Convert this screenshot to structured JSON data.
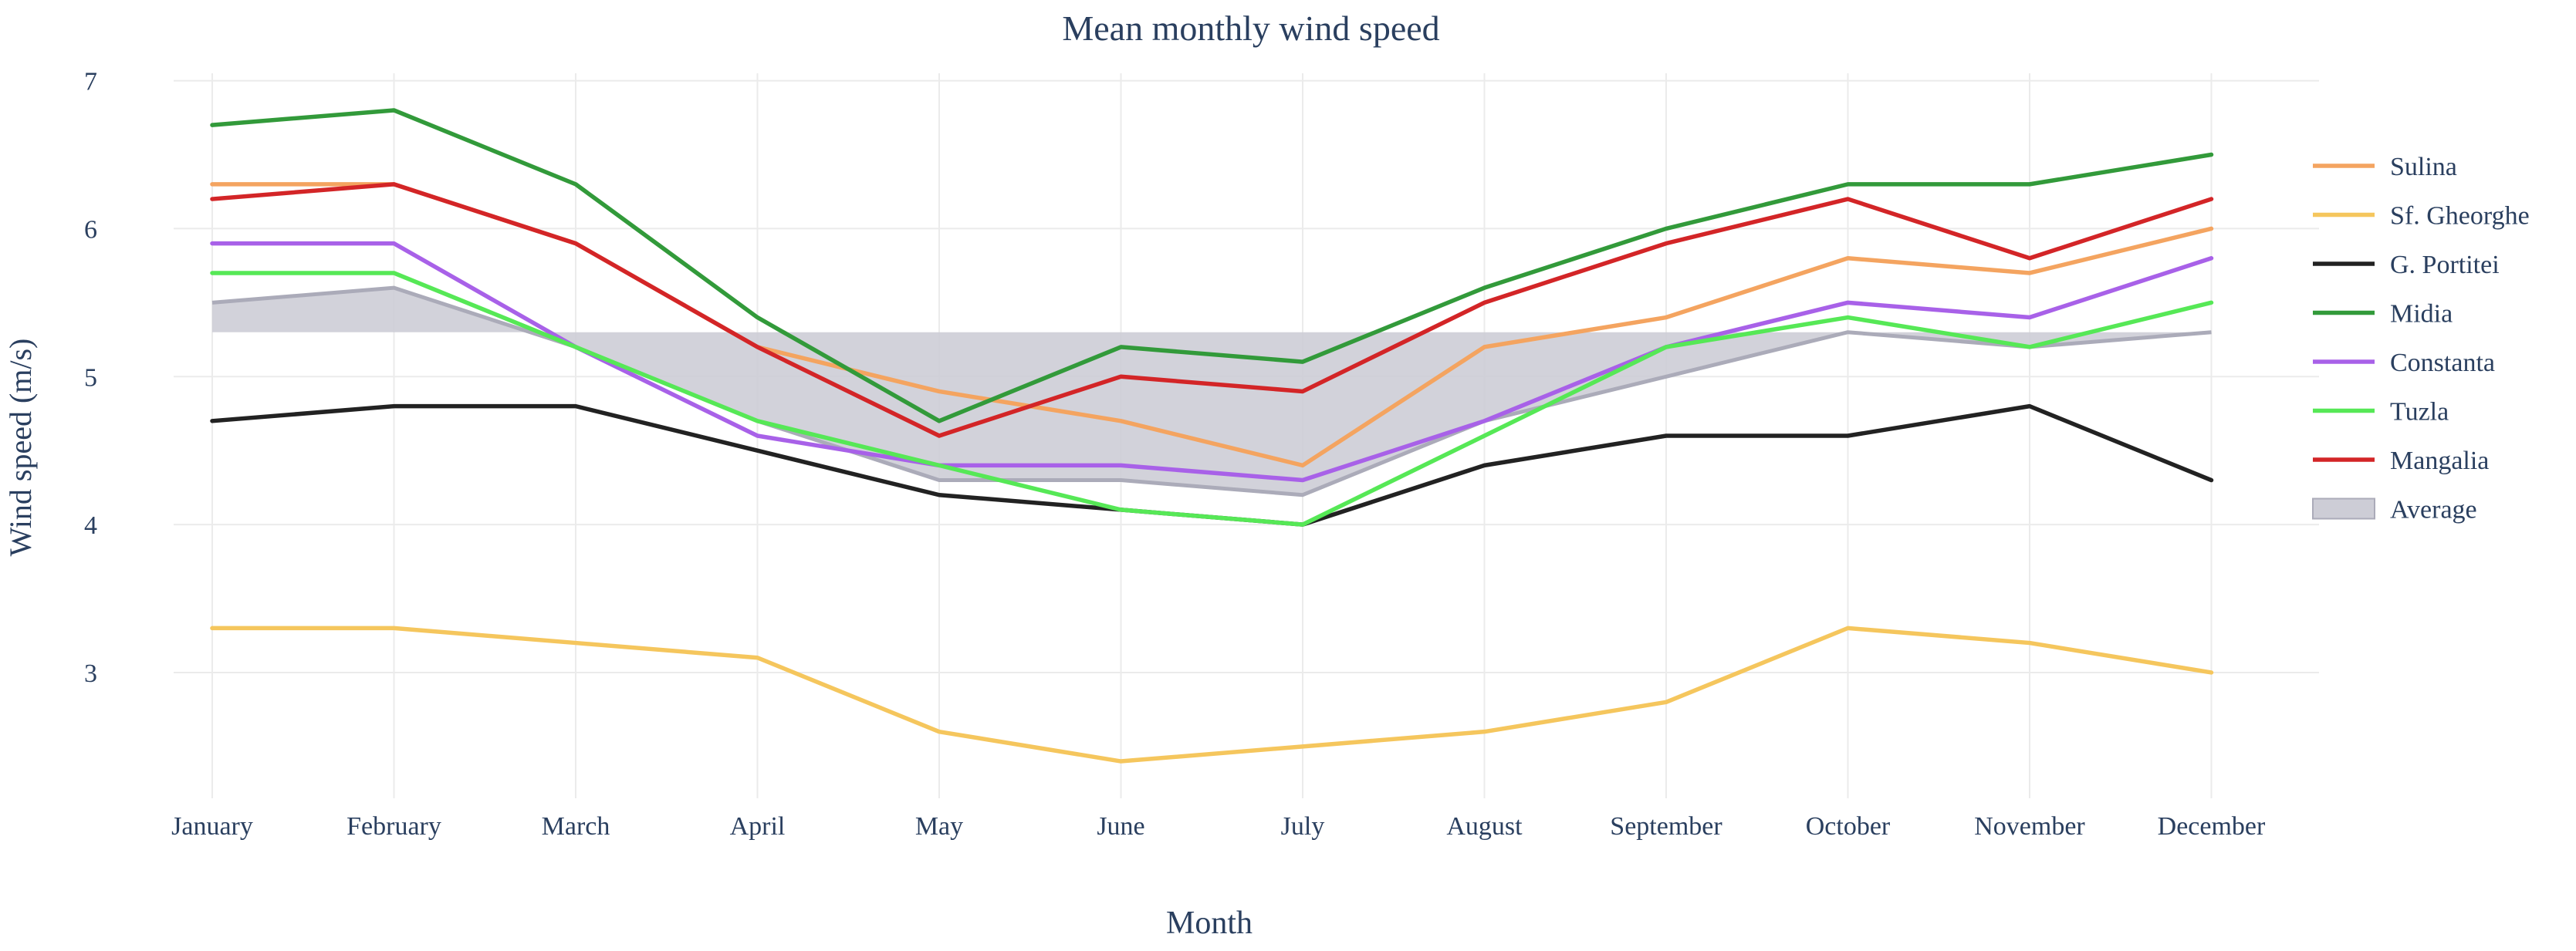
{
  "chart_data": {
    "type": "line",
    "title": "Mean monthly wind speed",
    "xlabel": "Month",
    "ylabel": "Wind speed (m/s)",
    "categories": [
      "January",
      "February",
      "March",
      "April",
      "May",
      "June",
      "July",
      "August",
      "September",
      "October",
      "November",
      "December"
    ],
    "ylim": [
      2.15,
      7.05
    ],
    "yticks": [
      3,
      4,
      5,
      6,
      7
    ],
    "grid": true,
    "legend_position": "right",
    "average_band": {
      "name": "Average",
      "color": "#ababb9",
      "fill": "#cdcdd6",
      "lower": 5.3,
      "values": [
        5.5,
        5.6,
        5.2,
        4.7,
        4.3,
        4.3,
        4.2,
        4.7,
        5.0,
        5.3,
        5.2,
        5.3
      ]
    },
    "series": [
      {
        "name": "Sulina",
        "color": "#f4a460",
        "values": [
          6.3,
          6.3,
          5.9,
          5.2,
          4.9,
          4.7,
          4.4,
          5.2,
          5.4,
          5.8,
          5.7,
          6.0
        ]
      },
      {
        "name": "Sf. Gheorghe",
        "color": "#f5c65d",
        "values": [
          3.3,
          3.3,
          3.2,
          3.1,
          2.6,
          2.4,
          2.5,
          2.6,
          2.8,
          3.3,
          3.2,
          3.0
        ]
      },
      {
        "name": "G. Portitei",
        "color": "#222222",
        "values": [
          4.7,
          4.8,
          4.8,
          4.5,
          4.2,
          4.1,
          4.0,
          4.4,
          4.6,
          4.6,
          4.8,
          4.3
        ]
      },
      {
        "name": "Midia",
        "color": "#329a3a",
        "values": [
          6.7,
          6.8,
          6.3,
          5.4,
          4.7,
          5.2,
          5.1,
          5.6,
          6.0,
          6.3,
          6.3,
          6.5
        ]
      },
      {
        "name": "Constanta",
        "color": "#a861e8",
        "values": [
          5.9,
          5.9,
          5.2,
          4.6,
          4.4,
          4.4,
          4.3,
          4.7,
          5.2,
          5.5,
          5.4,
          5.8
        ]
      },
      {
        "name": "Tuzla",
        "color": "#56e856",
        "values": [
          5.7,
          5.7,
          5.2,
          4.7,
          4.4,
          4.1,
          4.0,
          4.6,
          5.2,
          5.4,
          5.2,
          5.5
        ]
      },
      {
        "name": "Mangalia",
        "color": "#d32527",
        "values": [
          6.2,
          6.3,
          5.9,
          5.2,
          4.6,
          5.0,
          4.9,
          5.5,
          5.9,
          6.2,
          5.8,
          6.2
        ]
      }
    ],
    "legend_order": [
      "Sulina",
      "Sf. Gheorghe",
      "G. Portitei",
      "Midia",
      "Constanta",
      "Tuzla",
      "Mangalia",
      "Average"
    ]
  }
}
